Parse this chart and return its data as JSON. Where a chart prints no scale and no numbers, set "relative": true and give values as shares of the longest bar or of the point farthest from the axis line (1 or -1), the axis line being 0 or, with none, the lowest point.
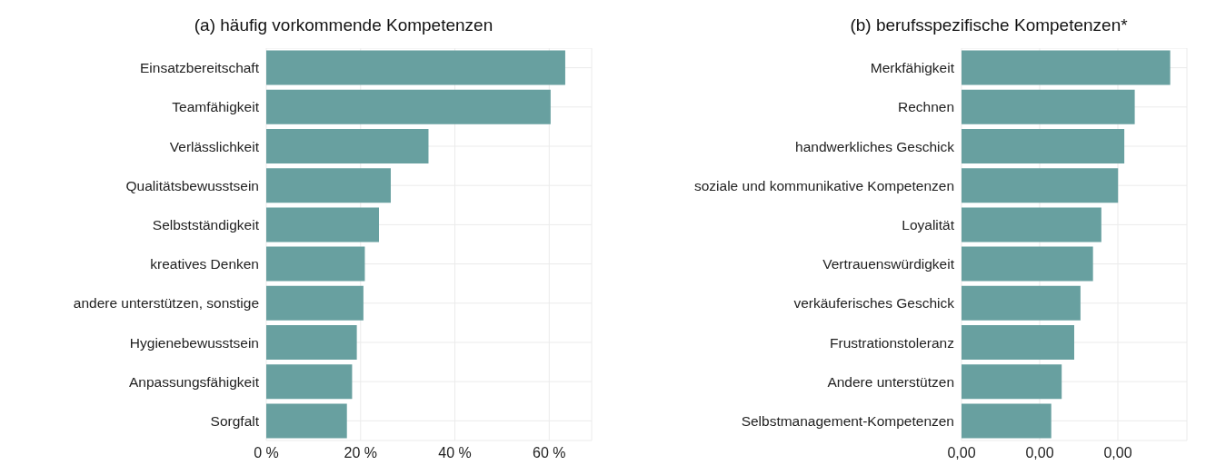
{
  "chart_data": [
    {
      "type": "bar",
      "orientation": "horizontal",
      "title": "(a) häufig vorkommende Kompetenzen",
      "categories": [
        "Einsatzbereitschaft",
        "Teamfähigkeit",
        "Verlässlichkeit",
        "Qualitätsbewusstsein",
        "Selbstständigkeit",
        "kreatives Denken",
        "andere unterstützen, sonstige",
        "Hygienebewusstsein",
        "Anpassungsfähigkeit",
        "Sorgfalt"
      ],
      "values": [
        63.4,
        60.3,
        34.4,
        26.4,
        23.9,
        20.9,
        20.6,
        19.2,
        18.2,
        17.1
      ],
      "color": "#68a0a0",
      "xlim": [
        0,
        69
      ],
      "xticks": [
        {
          "value": 0,
          "label": "0 %"
        },
        {
          "value": 20,
          "label": "20 %"
        },
        {
          "value": 40,
          "label": "40 %"
        },
        {
          "value": 60,
          "label": "60 %"
        }
      ],
      "grid": true
    },
    {
      "type": "bar",
      "orientation": "horizontal",
      "relative": true,
      "title": "(b) berufsspezifische Kompetenzen*",
      "categories": [
        "Merkfähigkeit",
        "Rechnen",
        "handwerkliches Geschick",
        "soziale und kommunikative Kompetenzen",
        "Loyalität",
        "Vertrauenswürdigkeit",
        "verkäuferisches Geschick",
        "Frustrationstoleranz",
        "Andere unterstützen",
        "Selbstmanagement-Kompetenzen"
      ],
      "values": [
        1,
        0.83,
        0.78,
        0.75,
        0.67,
        0.63,
        0.57,
        0.54,
        0.48,
        0.43
      ],
      "color": "#68a0a0",
      "annotations": [
        "0,00",
        "0,00",
        "0,00"
      ],
      "grid": true
    }
  ]
}
